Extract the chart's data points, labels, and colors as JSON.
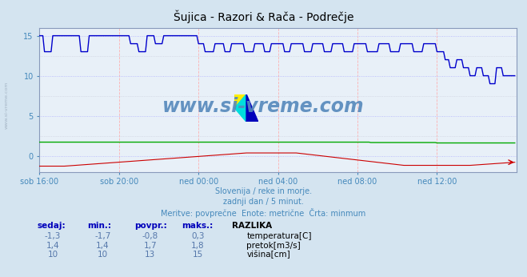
{
  "title": "Šujica - Razori & Rača - Podrečje",
  "subtitle1": "Slovenija / reke in morje.",
  "subtitle2": "zadnji dan / 5 minut.",
  "subtitle3": "Meritve: povprečne  Enote: metrične  Črta: minmum",
  "xlabel_ticks": [
    "sob 16:00",
    "sob 20:00",
    "ned 00:00",
    "ned 04:00",
    "ned 08:00",
    "ned 12:00"
  ],
  "ylim": [
    -2.0,
    16.0
  ],
  "xlim": [
    0,
    288
  ],
  "bg_color": "#d4e4f0",
  "plot_bg": "#e8f0f8",
  "grid_color_v": "#ffaaaa",
  "grid_color_h_dot": "#aaaaff",
  "grid_color_h_gray": "#bbbbcc",
  "title_color": "#000000",
  "axis_label_color": "#4488bb",
  "watermark_color": "#5588bb",
  "watermark_text": "www.si-vreme.com",
  "legend_header": "RAZLIKA",
  "legend_items": [
    "temperatura[C]",
    "pretok[m3/s]",
    "višina[cm]"
  ],
  "legend_colors": [
    "#cc0000",
    "#00aa00",
    "#0000cc"
  ],
  "table_headers": [
    "sedaj:",
    "min.:",
    "povpr.:",
    "maks.:"
  ],
  "table_values": [
    [
      "-1,3",
      "-1,7",
      "-0,8",
      "0,3"
    ],
    [
      "1,4",
      "1,4",
      "1,7",
      "1,8"
    ],
    [
      "10",
      "10",
      "13",
      "15"
    ]
  ],
  "n_points": 288,
  "tick_positions_x": [
    0,
    48,
    96,
    144,
    192,
    240
  ],
  "temp_color": "#cc0000",
  "flow_color": "#00aa00",
  "height_color": "#0000cc",
  "ytick_vals": [
    0,
    5,
    10,
    15
  ],
  "yticklabels": [
    "0",
    "5",
    "10",
    "15"
  ],
  "side_text": "www.si-vreme.com"
}
